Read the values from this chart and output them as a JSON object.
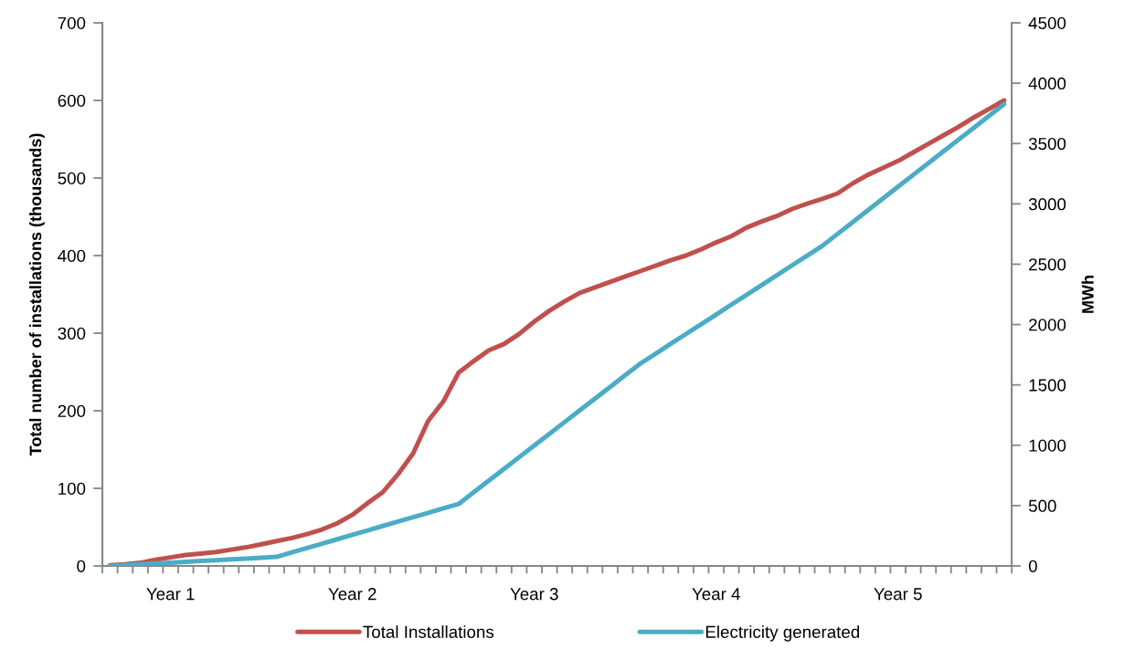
{
  "chart_data": {
    "type": "line",
    "categories": [
      null,
      null,
      null,
      null,
      "Year 1",
      null,
      null,
      null,
      null,
      null,
      null,
      null,
      null,
      null,
      null,
      null,
      "Year 2",
      null,
      null,
      null,
      null,
      null,
      null,
      null,
      null,
      null,
      null,
      null,
      "Year 3",
      null,
      null,
      null,
      null,
      null,
      null,
      null,
      null,
      null,
      null,
      null,
      "Year 4",
      null,
      null,
      null,
      null,
      null,
      null,
      null,
      null,
      null,
      null,
      null,
      "Year 5",
      null,
      null,
      null,
      null,
      null,
      null,
      null
    ],
    "series": [
      {
        "name": "Total Installations",
        "color": "#c0504d",
        "values": [
          1,
          2,
          4,
          8,
          11,
          14,
          16,
          18,
          21,
          24,
          28,
          32,
          36,
          41,
          47,
          55,
          66,
          81,
          95,
          118,
          145,
          187,
          212,
          249,
          264,
          278,
          286,
          299,
          315,
          329,
          341,
          352,
          359,
          366,
          373,
          380,
          387,
          394,
          400,
          408,
          417,
          425,
          436,
          444,
          451,
          460,
          467,
          473,
          480,
          493,
          504,
          513,
          522,
          533,
          544,
          555,
          566,
          578,
          589,
          600
        ]
      },
      {
        "name": "Electricity generated",
        "color": "#4bacc6",
        "axis": "y2",
        "values": [
          0,
          7,
          14,
          20,
          27,
          34,
          41,
          48,
          55,
          61,
          68,
          75,
          112,
          148,
          185,
          221,
          258,
          294,
          331,
          367,
          404,
          440,
          477,
          513,
          610,
          707,
          804,
          901,
          998,
          1095,
          1192,
          1289,
          1386,
          1483,
          1580,
          1677,
          1758,
          1840,
          1921,
          2002,
          2083,
          2165,
          2246,
          2327,
          2408,
          2490,
          2571,
          2652,
          2750,
          2848,
          2946,
          3044,
          3142,
          3240,
          3338,
          3435,
          3533,
          3631,
          3729,
          3827
        ]
      }
    ],
    "ylabel": "Total number of installations (thousands)",
    "y2label": "MWh",
    "ylim": [
      0,
      700
    ],
    "yticks": [
      0,
      100,
      200,
      300,
      400,
      500,
      600,
      700
    ],
    "y2lim": [
      0,
      4500
    ],
    "y2ticks": [
      0,
      500,
      1000,
      1500,
      2000,
      2500,
      3000,
      3500,
      4000,
      4500
    ],
    "grid": false,
    "legend": "bottom"
  }
}
